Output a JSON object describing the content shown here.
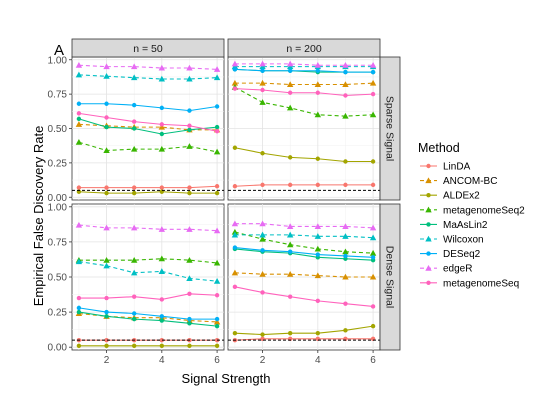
{
  "panel_tag": "A",
  "chart_data": {
    "type": "line",
    "xlabel": "Signal Strength",
    "ylabel": "Empirical False Discovery Rate",
    "x": [
      1,
      2,
      3,
      4,
      5,
      6
    ],
    "xlim": [
      0.75,
      6.25
    ],
    "ylim": [
      -0.02,
      1.02
    ],
    "x_ticks": [
      2,
      4,
      6
    ],
    "y_ticks": [
      0.0,
      0.25,
      0.5,
      0.75,
      1.0
    ],
    "y_tick_labels": [
      "0.00",
      "0.25",
      "0.50",
      "0.75",
      "1.00"
    ],
    "reference_line": 0.05,
    "grid": true,
    "legend_position": "right",
    "legend_title": "Method",
    "columns": [
      "n = 50",
      "n = 200"
    ],
    "rows": [
      "Sparse Signal",
      "Dense Signal"
    ],
    "methods": [
      {
        "name": "LinDA",
        "color": "#F8766D",
        "shape": "circle",
        "dashed": false
      },
      {
        "name": "ANCOM-BC",
        "color": "#D89000",
        "shape": "triangle",
        "dashed": true
      },
      {
        "name": "ALDEx2",
        "color": "#A3A500",
        "shape": "circle",
        "dashed": false
      },
      {
        "name": "metagenomeSeq2",
        "color": "#39B600",
        "shape": "triangle",
        "dashed": true
      },
      {
        "name": "MaAsLin2",
        "color": "#00BF7D",
        "shape": "circle",
        "dashed": false
      },
      {
        "name": "Wilcoxon",
        "color": "#00BFC4",
        "shape": "triangle",
        "dashed": true
      },
      {
        "name": "DESeq2",
        "color": "#00B0F6",
        "shape": "circle",
        "dashed": false
      },
      {
        "name": "edgeR",
        "color": "#E76BF3",
        "shape": "triangle",
        "dashed": true
      },
      {
        "name": "metagenomeSeq",
        "color": "#FF62BC",
        "shape": "circle",
        "dashed": false
      }
    ],
    "panels": [
      {
        "column": "n = 50",
        "row": "Sparse Signal",
        "series": {
          "LinDA": [
            0.07,
            0.07,
            0.07,
            0.07,
            0.07,
            0.08
          ],
          "ANCOM-BC": [
            0.53,
            0.52,
            0.51,
            0.51,
            0.49,
            0.49
          ],
          "ALDEx2": [
            0.04,
            0.03,
            0.03,
            0.04,
            0.03,
            0.03
          ],
          "metagenomeSeq2": [
            0.4,
            0.34,
            0.35,
            0.35,
            0.37,
            0.33
          ],
          "MaAsLin2": [
            0.57,
            0.51,
            0.5,
            0.46,
            0.49,
            0.51
          ],
          "Wilcoxon": [
            0.89,
            0.88,
            0.87,
            0.86,
            0.86,
            0.87
          ],
          "DESeq2": [
            0.68,
            0.68,
            0.67,
            0.65,
            0.63,
            0.66
          ],
          "edgeR": [
            0.96,
            0.95,
            0.95,
            0.94,
            0.94,
            0.93
          ],
          "metagenomeSeq": [
            0.61,
            0.58,
            0.55,
            0.53,
            0.52,
            0.48
          ]
        }
      },
      {
        "column": "n = 200",
        "row": "Sparse Signal",
        "series": {
          "LinDA": [
            0.08,
            0.09,
            0.09,
            0.09,
            0.09,
            0.09
          ],
          "ANCOM-BC": [
            0.83,
            0.83,
            0.82,
            0.82,
            0.82,
            0.83
          ],
          "ALDEx2": [
            0.36,
            0.32,
            0.29,
            0.28,
            0.26,
            0.26
          ],
          "metagenomeSeq2": [
            0.8,
            0.69,
            0.65,
            0.6,
            0.59,
            0.6
          ],
          "MaAsLin2": [
            0.93,
            0.92,
            0.92,
            0.91,
            0.91,
            0.91
          ],
          "Wilcoxon": [
            0.95,
            0.95,
            0.95,
            0.95,
            0.95,
            0.95
          ],
          "DESeq2": [
            0.93,
            0.92,
            0.92,
            0.92,
            0.91,
            0.91
          ],
          "edgeR": [
            0.97,
            0.97,
            0.97,
            0.96,
            0.96,
            0.96
          ],
          "metagenomeSeq": [
            0.79,
            0.78,
            0.76,
            0.76,
            0.74,
            0.75
          ]
        }
      },
      {
        "column": "n = 50",
        "row": "Dense Signal",
        "series": {
          "LinDA": [
            0.05,
            0.05,
            0.05,
            0.05,
            0.05,
            0.05
          ],
          "ANCOM-BC": [
            0.24,
            0.22,
            0.21,
            0.21,
            0.19,
            0.18
          ],
          "ALDEx2": [
            0.01,
            0.01,
            0.01,
            0.01,
            0.01,
            0.01
          ],
          "metagenomeSeq2": [
            0.62,
            0.62,
            0.62,
            0.63,
            0.62,
            0.6
          ],
          "MaAsLin2": [
            0.25,
            0.22,
            0.2,
            0.19,
            0.17,
            0.15
          ],
          "Wilcoxon": [
            0.61,
            0.58,
            0.53,
            0.54,
            0.49,
            0.47
          ],
          "DESeq2": [
            0.28,
            0.25,
            0.24,
            0.22,
            0.2,
            0.2
          ],
          "edgeR": [
            0.87,
            0.85,
            0.85,
            0.84,
            0.84,
            0.83
          ],
          "metagenomeSeq": [
            0.35,
            0.35,
            0.36,
            0.34,
            0.38,
            0.37
          ]
        }
      },
      {
        "column": "n = 200",
        "row": "Dense Signal",
        "series": {
          "LinDA": [
            0.05,
            0.06,
            0.06,
            0.06,
            0.06,
            0.06
          ],
          "ANCOM-BC": [
            0.53,
            0.52,
            0.52,
            0.51,
            0.5,
            0.5
          ],
          "ALDEx2": [
            0.1,
            0.09,
            0.1,
            0.1,
            0.12,
            0.15
          ],
          "metagenomeSeq2": [
            0.82,
            0.77,
            0.73,
            0.7,
            0.68,
            0.67
          ],
          "MaAsLin2": [
            0.7,
            0.68,
            0.67,
            0.64,
            0.63,
            0.62
          ],
          "Wilcoxon": [
            0.8,
            0.8,
            0.8,
            0.79,
            0.79,
            0.78
          ],
          "DESeq2": [
            0.71,
            0.69,
            0.68,
            0.66,
            0.65,
            0.64
          ],
          "edgeR": [
            0.88,
            0.88,
            0.86,
            0.86,
            0.86,
            0.85
          ],
          "metagenomeSeq": [
            0.43,
            0.39,
            0.36,
            0.33,
            0.31,
            0.29
          ]
        }
      }
    ]
  }
}
